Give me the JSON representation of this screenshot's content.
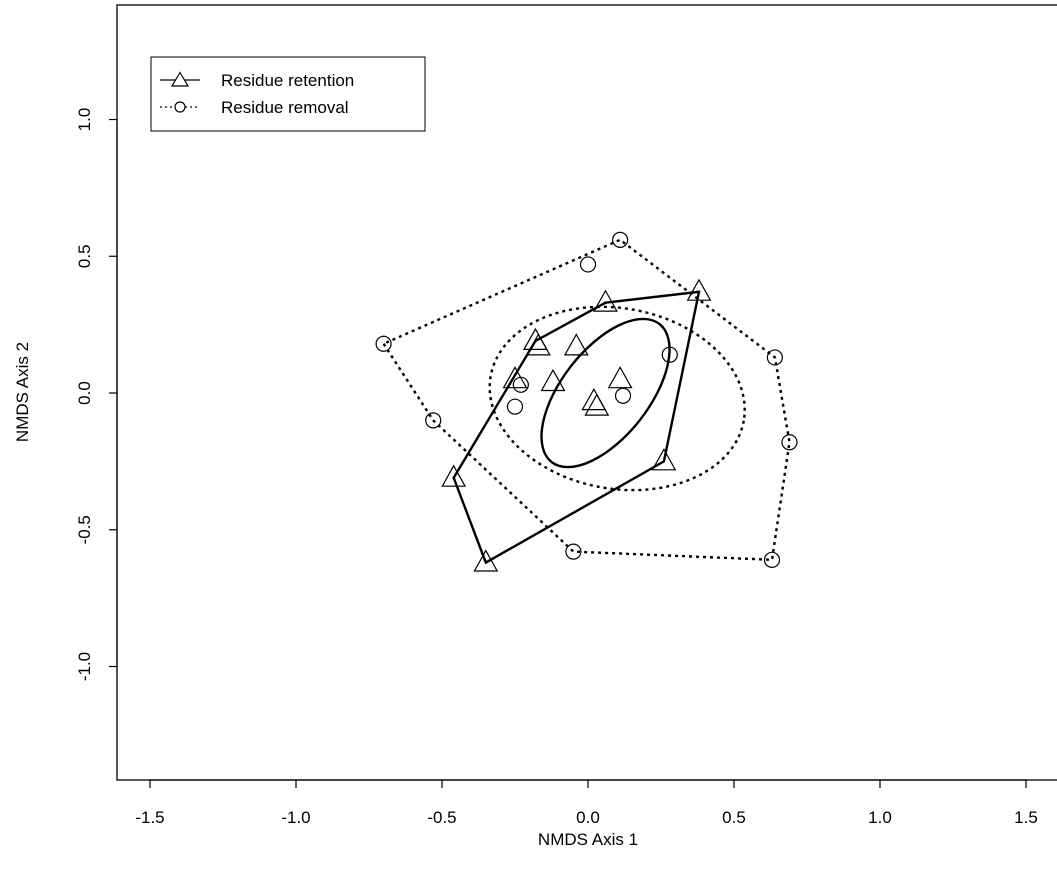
{
  "chart_data": {
    "type": "scatter",
    "xlabel": "NMDS Axis 1",
    "ylabel": "NMDS Axis 2",
    "xlim": [
      -1.6,
      1.6
    ],
    "ylim": [
      -1.4,
      1.4
    ],
    "xticks": [
      -1.5,
      -1.0,
      -0.5,
      0.0,
      0.5,
      1.0,
      1.5
    ],
    "xtick_labels": [
      "-1.5",
      "-1.0",
      "-0.5",
      "0.0",
      "0.5",
      "1.0",
      "1.5"
    ],
    "yticks": [
      -1.0,
      -0.5,
      0.0,
      0.5,
      1.0
    ],
    "ytick_labels": [
      "-1.0",
      "-0.5",
      "0.0",
      "0.5",
      "1.0"
    ],
    "grid": false,
    "legend_position": "top-left",
    "series": [
      {
        "name": "Residue retention",
        "marker": "triangle",
        "line_style": "solid",
        "points": [
          {
            "x": -0.35,
            "y": -0.62
          },
          {
            "x": -0.46,
            "y": -0.31
          },
          {
            "x": -0.18,
            "y": 0.19
          },
          {
            "x": -0.17,
            "y": 0.17
          },
          {
            "x": 0.06,
            "y": 0.33
          },
          {
            "x": 0.38,
            "y": 0.37
          },
          {
            "x": 0.26,
            "y": -0.25
          },
          {
            "x": -0.04,
            "y": 0.17
          },
          {
            "x": -0.12,
            "y": 0.04
          },
          {
            "x": -0.25,
            "y": 0.05
          },
          {
            "x": 0.11,
            "y": 0.05
          },
          {
            "x": 0.02,
            "y": -0.03
          },
          {
            "x": 0.03,
            "y": -0.05
          }
        ],
        "hull": [
          {
            "x": -0.35,
            "y": -0.62
          },
          {
            "x": -0.46,
            "y": -0.31
          },
          {
            "x": -0.18,
            "y": 0.19
          },
          {
            "x": 0.06,
            "y": 0.33
          },
          {
            "x": 0.38,
            "y": 0.37
          },
          {
            "x": 0.26,
            "y": -0.25
          }
        ],
        "ellipse": {
          "cx": 0.06,
          "cy": 0.0,
          "rx": 0.3,
          "ry": 0.16,
          "angle_deg": 52
        }
      },
      {
        "name": "Residue removal",
        "marker": "circle",
        "line_style": "dotted",
        "points": [
          {
            "x": -0.7,
            "y": 0.18
          },
          {
            "x": -0.53,
            "y": -0.1
          },
          {
            "x": -0.05,
            "y": -0.58
          },
          {
            "x": 0.63,
            "y": -0.61
          },
          {
            "x": 0.69,
            "y": -0.18
          },
          {
            "x": 0.64,
            "y": 0.13
          },
          {
            "x": 0.11,
            "y": 0.56
          },
          {
            "x": 0.0,
            "y": 0.47
          },
          {
            "x": 0.28,
            "y": 0.14
          },
          {
            "x": -0.23,
            "y": 0.03
          },
          {
            "x": -0.25,
            "y": -0.05
          },
          {
            "x": 0.12,
            "y": -0.01
          }
        ],
        "hull": [
          {
            "x": -0.7,
            "y": 0.18
          },
          {
            "x": -0.53,
            "y": -0.1
          },
          {
            "x": -0.05,
            "y": -0.58
          },
          {
            "x": 0.63,
            "y": -0.61
          },
          {
            "x": 0.69,
            "y": -0.18
          },
          {
            "x": 0.64,
            "y": 0.13
          },
          {
            "x": 0.11,
            "y": 0.56
          }
        ],
        "ellipse": {
          "cx": 0.1,
          "cy": -0.02,
          "rx": 0.44,
          "ry": 0.33,
          "angle_deg": -10
        }
      }
    ]
  }
}
